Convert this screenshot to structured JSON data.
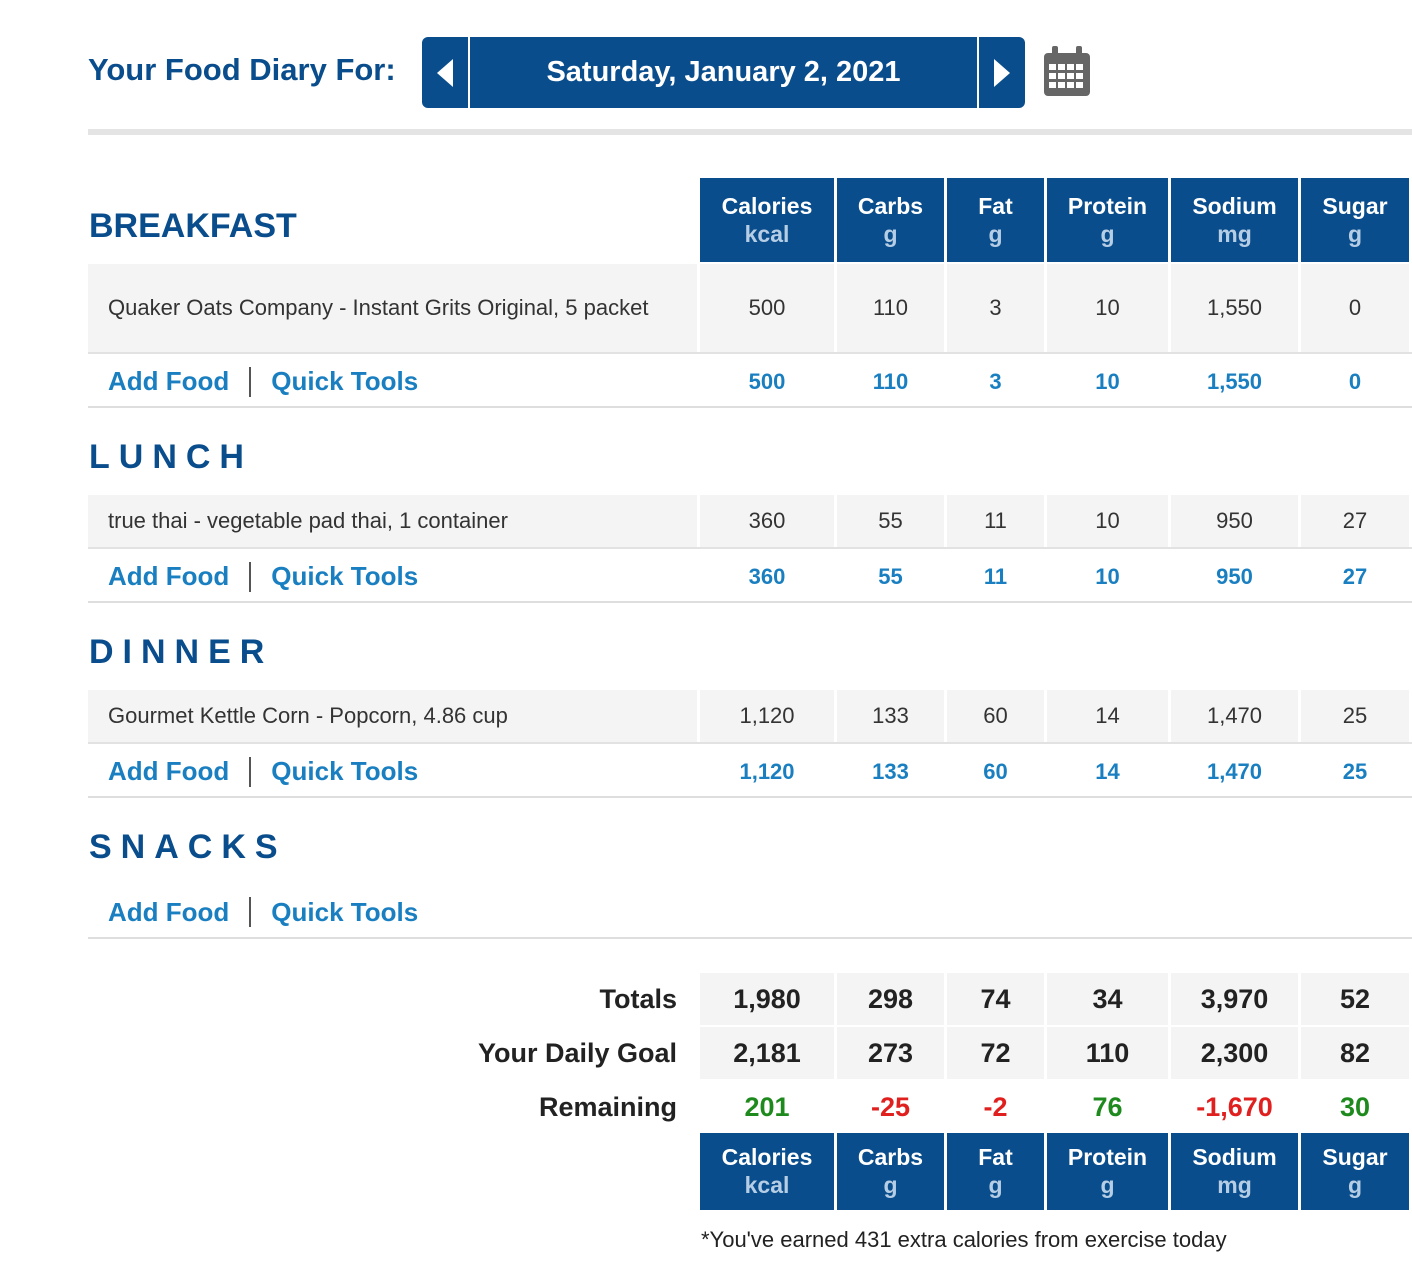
{
  "header": {
    "title": "Your Food Diary For:",
    "date": "Saturday, January 2, 2021"
  },
  "columns": [
    {
      "label": "Calories",
      "unit": "kcal"
    },
    {
      "label": "Carbs",
      "unit": "g"
    },
    {
      "label": "Fat",
      "unit": "g"
    },
    {
      "label": "Protein",
      "unit": "g"
    },
    {
      "label": "Sodium",
      "unit": "mg"
    },
    {
      "label": "Sugar",
      "unit": "g"
    }
  ],
  "links": {
    "add_food": "Add Food",
    "quick_tools": "Quick Tools"
  },
  "meals": {
    "breakfast": {
      "title": "BREAKFAST",
      "food_name": "Quaker Oats Company - Instant Grits Original, 5 packet",
      "food_values": [
        "500",
        "110",
        "3",
        "10",
        "1,550",
        "0"
      ],
      "sums": [
        "500",
        "110",
        "3",
        "10",
        "1,550",
        "0"
      ]
    },
    "lunch": {
      "title": "LUNCH",
      "food_name": "true thai - vegetable pad thai, 1 container",
      "food_values": [
        "360",
        "55",
        "11",
        "10",
        "950",
        "27"
      ],
      "sums": [
        "360",
        "55",
        "11",
        "10",
        "950",
        "27"
      ]
    },
    "dinner": {
      "title": "DINNER",
      "food_name": "Gourmet Kettle Corn - Popcorn, 4.86 cup",
      "food_values": [
        "1,120",
        "133",
        "60",
        "14",
        "1,470",
        "25"
      ],
      "sums": [
        "1,120",
        "133",
        "60",
        "14",
        "1,470",
        "25"
      ]
    },
    "snacks": {
      "title": "SNACKS"
    }
  },
  "totals": {
    "totals_label": "Totals",
    "totals": [
      "1,980",
      "298",
      "74",
      "34",
      "3,970",
      "52"
    ],
    "goal_label": "Your Daily Goal",
    "goal": [
      "2,181",
      "273",
      "72",
      "110",
      "2,300",
      "82"
    ],
    "remaining_label": "Remaining",
    "remaining": [
      "201",
      "-25",
      "-2",
      "76",
      "-1,670",
      "30"
    ]
  },
  "colors": {
    "brand": "#0a4d8c",
    "link": "#1a7fc0",
    "positive": "#1e8a1e",
    "negative": "#e0201f"
  },
  "icons": {
    "prev": "triangle-left-icon",
    "next": "triangle-right-icon",
    "calendar": "calendar-icon"
  },
  "note": "*You've earned 431 extra calories from exercise today"
}
